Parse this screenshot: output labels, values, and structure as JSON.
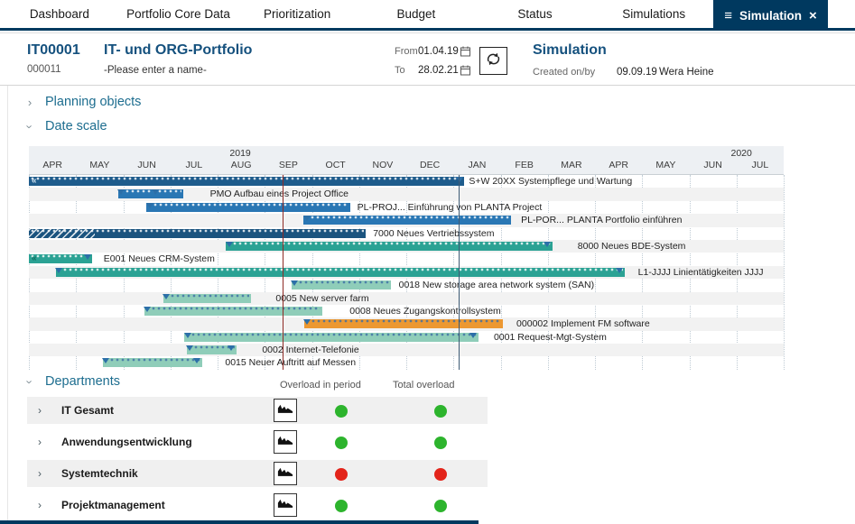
{
  "nav": {
    "items": [
      {
        "label": "Dashboard"
      },
      {
        "label": "Portfolio Core Data"
      },
      {
        "label": "Prioritization"
      },
      {
        "label": "Budget"
      },
      {
        "label": "Status"
      },
      {
        "label": "Simulations"
      }
    ],
    "active": {
      "label": "Simulation",
      "menu_glyph": "≡",
      "close_glyph": "×"
    }
  },
  "header": {
    "portfolio_id": "IT00001",
    "portfolio_code": "000011",
    "portfolio_title": "IT- und ORG-Portfolio",
    "portfolio_subtitle": "-Please enter a name-",
    "from_label": "From",
    "from_value": "01.04.19",
    "to_label": "To",
    "to_value": "28.02.21",
    "sim_title": "Simulation",
    "created_label": "Created on/by",
    "created_date": "09.09.19",
    "created_by": "Wera Heine"
  },
  "sections": {
    "planning_objects": "Planning objects",
    "date_scale": "Date scale",
    "departments": "Departments"
  },
  "gantt": {
    "years": [
      {
        "label": "2019",
        "pos_pct": 28.0
      },
      {
        "label": "2020",
        "pos_pct": 94.4
      }
    ],
    "months": [
      "APR",
      "MAY",
      "JUN",
      "JUL",
      "AUG",
      "SEP",
      "OCT",
      "NOV",
      "DEC",
      "JAN",
      "FEB",
      "MAR",
      "APR",
      "MAY",
      "JUN",
      "JUL"
    ],
    "today_line_pct": 33.6,
    "marker_line_pct": 56.9,
    "rows": [
      {
        "label": "S+W 20XX Systempflege und Wartung",
        "start": 0,
        "end": 57.7,
        "label_pct": 58.3,
        "color": "darkblue",
        "prefix": "«",
        "prefix_color": "#cfe2ef",
        "tris": [
          57.0
        ]
      },
      {
        "label": "PMO Aufbau eines Project Office",
        "start": 11.8,
        "end": 20.5,
        "label_pct": 24.0,
        "color": "blue",
        "tris": [
          12.2,
          16.7
        ]
      },
      {
        "label": "PL-PROJ... Einführung von PLANTA Project",
        "start": 15.6,
        "end": 42.6,
        "label_pct": 43.5,
        "color": "blue",
        "tris": [
          16.0
        ]
      },
      {
        "label": "PL-POR... PLANTA Portfolio einführen",
        "start": 36.4,
        "end": 63.9,
        "label_pct": 65.2,
        "color": "blue",
        "tris": [
          36.8
        ]
      },
      {
        "label": "7000 Neues Vertriebssystem",
        "start": 0,
        "end": 44.6,
        "label_pct": 45.6,
        "color": "navy",
        "hatch_pct": 19.6,
        "tris": []
      },
      {
        "label": "8000 Neues BDE-System",
        "start": 26.1,
        "end": 69.4,
        "label_pct": 72.7,
        "color": "teal",
        "tris": [
          26.5,
          68.7
        ]
      },
      {
        "label": "E001 Neues CRM-System",
        "start": 0,
        "end": 8.4,
        "label_pct": 9.9,
        "color": "teal",
        "prefix": "«",
        "prefix_color": "#0d6e5f",
        "tris": [
          7.8
        ]
      },
      {
        "label": "L1-JJJJ Linientätigkeiten JJJJ",
        "start": 3.6,
        "end": 78.9,
        "label_pct": 80.7,
        "color": "teal",
        "tris": [
          4.0,
          78.2
        ]
      },
      {
        "label": "0018 New storage area network system (SAN)",
        "start": 34.8,
        "end": 48.0,
        "label_pct": 49.0,
        "color": "mint",
        "tris": [
          35.2
        ]
      },
      {
        "label": "0005 New server farm",
        "start": 17.8,
        "end": 29.4,
        "label_pct": 32.7,
        "color": "mint",
        "tris": [
          18.2
        ]
      },
      {
        "label": "0008 Neues Zugangskontrollsystem",
        "start": 15.3,
        "end": 38.9,
        "label_pct": 42.5,
        "color": "mint",
        "tris": [
          15.7
        ]
      },
      {
        "label": "000002 Implement FM software",
        "start": 36.5,
        "end": 62.8,
        "label_pct": 64.6,
        "color": "orange",
        "tris": [
          36.9
        ]
      },
      {
        "label": "0001 Request-Mgt-System",
        "start": 20.6,
        "end": 59.6,
        "label_pct": 61.6,
        "color": "mint",
        "tris": [
          21.0,
          58.9
        ]
      },
      {
        "label": "0002 Internet-Telefonie",
        "start": 20.9,
        "end": 27.5,
        "label_pct": 30.9,
        "color": "mint",
        "tris": [
          21.3,
          26.8
        ]
      },
      {
        "label": "0015 Neuer Auftritt auf Messen",
        "start": 9.8,
        "end": 23.0,
        "label_pct": 26.0,
        "color": "mint",
        "tris": [
          10.2,
          22.3
        ]
      }
    ]
  },
  "departments": {
    "columns": [
      "Overload in period",
      "Total overload"
    ],
    "rows": [
      {
        "name": "IT Gesamt",
        "overload_in_period": "green",
        "total_overload": "green"
      },
      {
        "name": "Anwendungsentwicklung",
        "overload_in_period": "green",
        "total_overload": "green"
      },
      {
        "name": "Systemtechnik",
        "overload_in_period": "red",
        "total_overload": "red"
      },
      {
        "name": "Projektmanagement",
        "overload_in_period": "green",
        "total_overload": "green"
      }
    ]
  },
  "colors": {
    "accent_navy": "#00395F",
    "section_blue": "#1D6D8F",
    "title_blue": "#15517E",
    "status_green": "#2DB42D",
    "status_red": "#E3241A",
    "bar_darkblue": "#1E5C8C",
    "bar_blue": "#2A77B4",
    "bar_navy": "#1B547F",
    "bar_teal": "#2BA294",
    "bar_mint": "#8FCDB9",
    "bar_orange": "#EC9831",
    "today_line": "#8E2A25",
    "marker_line": "#3D5A74"
  }
}
